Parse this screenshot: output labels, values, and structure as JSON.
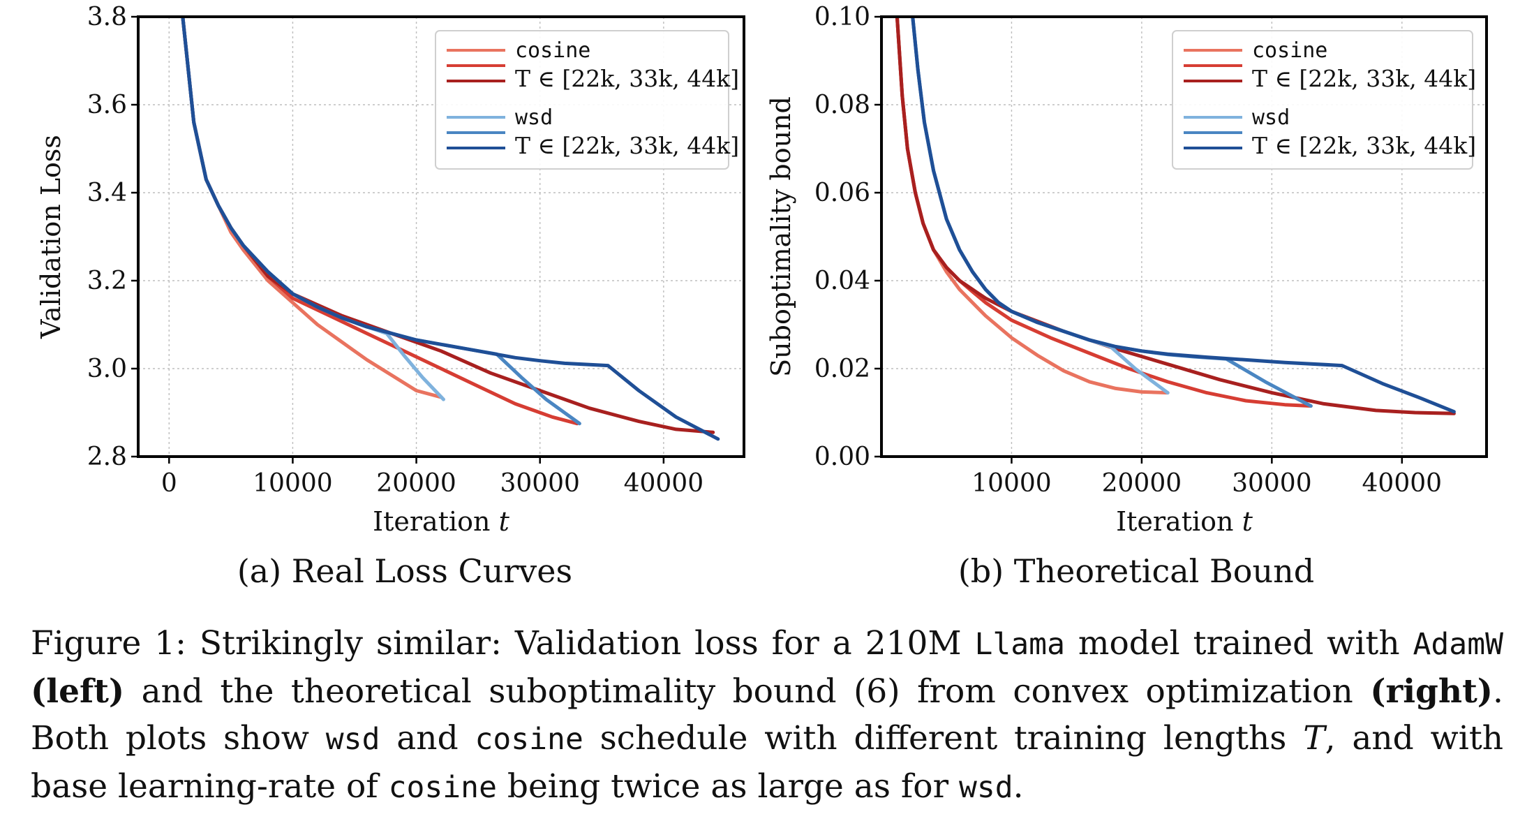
{
  "colors": {
    "cosine": [
      "#e9735f",
      "#d63d33",
      "#a8201f"
    ],
    "wsd": [
      "#7fb2dd",
      "#4a86c2",
      "#1f4f96"
    ]
  },
  "legend": {
    "cosine_name": "cosine",
    "wsd_name": "wsd",
    "range_label": "T ∈ [22k, 33k, 44k]"
  },
  "chart_data": [
    {
      "type": "line",
      "title": "(a) Real Loss Curves",
      "xlabel": "Iteration t",
      "ylabel": "Validation Loss",
      "xlim": [
        -2500,
        46500
      ],
      "ylim": [
        2.8,
        3.8
      ],
      "xticks": [
        0,
        10000,
        20000,
        30000,
        40000
      ],
      "yticks": [
        2.8,
        3.0,
        3.2,
        3.4,
        3.6,
        3.8
      ],
      "ytick_labels": [
        "2.8",
        "3.0",
        "3.2",
        "3.4",
        "3.6",
        "3.8"
      ],
      "grid": true,
      "legend_position": "top-right",
      "series": [
        {
          "family": "cosine",
          "T": 22000,
          "x": [
            1100,
            2000,
            3000,
            4000,
            5000,
            6000,
            8000,
            10000,
            12000,
            14000,
            16000,
            18000,
            20000,
            22000
          ],
          "y": [
            3.8,
            3.56,
            3.43,
            3.37,
            3.31,
            3.27,
            3.2,
            3.15,
            3.1,
            3.06,
            3.02,
            2.985,
            2.95,
            2.935
          ]
        },
        {
          "family": "cosine",
          "T": 33000,
          "x": [
            1100,
            2000,
            3000,
            4000,
            5000,
            6000,
            8000,
            10000,
            13000,
            16000,
            19000,
            22000,
            25000,
            28000,
            31000,
            33000
          ],
          "y": [
            3.8,
            3.56,
            3.43,
            3.37,
            3.32,
            3.28,
            3.21,
            3.16,
            3.12,
            3.08,
            3.04,
            3.0,
            2.96,
            2.92,
            2.89,
            2.875
          ]
        },
        {
          "family": "cosine",
          "T": 44000,
          "x": [
            1100,
            2000,
            3000,
            4000,
            5000,
            6000,
            8000,
            10000,
            14000,
            18000,
            22000,
            26000,
            30000,
            34000,
            38000,
            41000,
            44000
          ],
          "y": [
            3.8,
            3.56,
            3.43,
            3.37,
            3.32,
            3.28,
            3.21,
            3.17,
            3.12,
            3.08,
            3.04,
            2.99,
            2.95,
            2.91,
            2.88,
            2.862,
            2.855
          ]
        },
        {
          "family": "wsd",
          "T": 22000,
          "x": [
            1100,
            2000,
            3000,
            4000,
            5000,
            6000,
            8000,
            10000,
            12000,
            14000,
            16000,
            17600,
            19000,
            20500,
            22200
          ],
          "y": [
            3.8,
            3.56,
            3.43,
            3.37,
            3.32,
            3.28,
            3.22,
            3.17,
            3.14,
            3.115,
            3.095,
            3.08,
            3.03,
            2.98,
            2.93
          ]
        },
        {
          "family": "wsd",
          "T": 33000,
          "x": [
            1100,
            2000,
            3000,
            4000,
            5000,
            6000,
            8000,
            10000,
            12000,
            14000,
            16000,
            18000,
            20000,
            22000,
            24000,
            26500,
            28500,
            30500,
            33200
          ],
          "y": [
            3.8,
            3.56,
            3.43,
            3.37,
            3.32,
            3.28,
            3.22,
            3.17,
            3.14,
            3.115,
            3.095,
            3.08,
            3.065,
            3.055,
            3.045,
            3.033,
            2.98,
            2.93,
            2.875
          ]
        },
        {
          "family": "wsd",
          "T": 44000,
          "x": [
            1100,
            2000,
            3000,
            4000,
            5000,
            6000,
            8000,
            10000,
            12000,
            14000,
            16000,
            18000,
            20000,
            22000,
            24000,
            26000,
            28000,
            30000,
            32000,
            35500,
            38000,
            41000,
            44400
          ],
          "y": [
            3.8,
            3.56,
            3.43,
            3.37,
            3.32,
            3.28,
            3.22,
            3.17,
            3.14,
            3.115,
            3.095,
            3.08,
            3.065,
            3.055,
            3.045,
            3.035,
            3.025,
            3.018,
            3.012,
            3.007,
            2.95,
            2.89,
            2.84
          ]
        }
      ]
    },
    {
      "type": "line",
      "title": "(b) Theoretical Bound",
      "xlabel": "Iteration t",
      "ylabel": "Suboptimality bound",
      "xlim": [
        0,
        46500
      ],
      "ylim": [
        0,
        0.1
      ],
      "xticks": [
        10000,
        20000,
        30000,
        40000
      ],
      "yticks": [
        0,
        0.02,
        0.04,
        0.06,
        0.08,
        0.1
      ],
      "ytick_labels": [
        "0.00",
        "0.02",
        "0.04",
        "0.06",
        "0.08",
        "0.10"
      ],
      "grid": true,
      "legend_position": "top-right",
      "series": [
        {
          "family": "cosine",
          "T": 22000,
          "x": [
            1200,
            1600,
            2000,
            2600,
            3200,
            4000,
            5000,
            6000,
            7000,
            8000,
            10000,
            12000,
            14000,
            16000,
            18000,
            20000,
            22000
          ],
          "y": [
            0.1,
            0.082,
            0.07,
            0.06,
            0.053,
            0.047,
            0.042,
            0.038,
            0.035,
            0.032,
            0.027,
            0.023,
            0.0195,
            0.017,
            0.0155,
            0.0147,
            0.0145
          ]
        },
        {
          "family": "cosine",
          "T": 33000,
          "x": [
            1200,
            1600,
            2000,
            2600,
            3200,
            4000,
            5000,
            6000,
            7000,
            8000,
            10000,
            13000,
            16000,
            19000,
            22000,
            25000,
            28000,
            31000,
            33000
          ],
          "y": [
            0.1,
            0.082,
            0.07,
            0.06,
            0.053,
            0.047,
            0.043,
            0.04,
            0.0375,
            0.035,
            0.031,
            0.027,
            0.0235,
            0.02,
            0.017,
            0.0145,
            0.0127,
            0.0118,
            0.0115
          ]
        },
        {
          "family": "cosine",
          "T": 44000,
          "x": [
            1200,
            1600,
            2000,
            2600,
            3200,
            4000,
            5000,
            6000,
            7000,
            8000,
            10000,
            14000,
            18000,
            22000,
            26000,
            30000,
            34000,
            38000,
            41000,
            44000
          ],
          "y": [
            0.1,
            0.082,
            0.07,
            0.06,
            0.053,
            0.047,
            0.043,
            0.04,
            0.038,
            0.036,
            0.033,
            0.0285,
            0.0245,
            0.021,
            0.0175,
            0.0145,
            0.012,
            0.0105,
            0.01,
            0.0098
          ]
        },
        {
          "family": "wsd",
          "T": 22000,
          "x": [
            2400,
            2800,
            3300,
            4000,
            5000,
            6000,
            7000,
            8000,
            9000,
            10000,
            12000,
            14000,
            16000,
            17600,
            19500,
            22000
          ],
          "y": [
            0.1,
            0.088,
            0.076,
            0.065,
            0.054,
            0.047,
            0.042,
            0.038,
            0.035,
            0.033,
            0.0305,
            0.0285,
            0.0265,
            0.025,
            0.02,
            0.0145
          ]
        },
        {
          "family": "wsd",
          "T": 33000,
          "x": [
            2400,
            2800,
            3300,
            4000,
            5000,
            6000,
            7000,
            8000,
            9000,
            10000,
            12000,
            14000,
            16000,
            18000,
            20000,
            22000,
            24000,
            26500,
            29500,
            33000
          ],
          "y": [
            0.1,
            0.088,
            0.076,
            0.065,
            0.054,
            0.047,
            0.042,
            0.038,
            0.035,
            0.033,
            0.0305,
            0.0285,
            0.0265,
            0.025,
            0.024,
            0.0232,
            0.0227,
            0.0222,
            0.017,
            0.0115
          ]
        },
        {
          "family": "wsd",
          "T": 44000,
          "x": [
            2400,
            2800,
            3300,
            4000,
            5000,
            6000,
            7000,
            8000,
            9000,
            10000,
            12000,
            14000,
            16000,
            18000,
            20000,
            22000,
            25000,
            28000,
            31000,
            35400,
            38500,
            41500,
            44000
          ],
          "y": [
            0.1,
            0.088,
            0.076,
            0.065,
            0.054,
            0.047,
            0.042,
            0.038,
            0.035,
            0.033,
            0.0305,
            0.0285,
            0.0265,
            0.025,
            0.024,
            0.0233,
            0.0226,
            0.022,
            0.0214,
            0.0207,
            0.0166,
            0.0132,
            0.0102
          ]
        }
      ]
    }
  ],
  "caption": {
    "lines": [
      [
        [
          "Figure 1: Strikingly similar: Validation loss for a 210M ",
          ""
        ],
        [
          "Llama",
          "mono"
        ],
        [
          " model trained with ",
          ""
        ],
        [
          "AdamW",
          "mono"
        ]
      ],
      [
        [
          "(left)",
          "b"
        ],
        [
          " and the theoretical suboptimality bound (6) from convex optimization ",
          ""
        ],
        [
          "(right)",
          "b"
        ],
        [
          ".",
          ""
        ]
      ],
      [
        [
          "Both plots show ",
          ""
        ],
        [
          "wsd",
          "mono"
        ],
        [
          " and ",
          ""
        ],
        [
          "cosine",
          "mono"
        ],
        [
          " schedule with different training lengths ",
          ""
        ],
        [
          "T",
          "it"
        ],
        [
          ", and with",
          ""
        ]
      ],
      [
        [
          "base learning-rate of ",
          ""
        ],
        [
          "cosine",
          "mono"
        ],
        [
          " being twice as large as for ",
          ""
        ],
        [
          "wsd",
          "mono"
        ],
        [
          ".",
          ""
        ]
      ]
    ]
  }
}
